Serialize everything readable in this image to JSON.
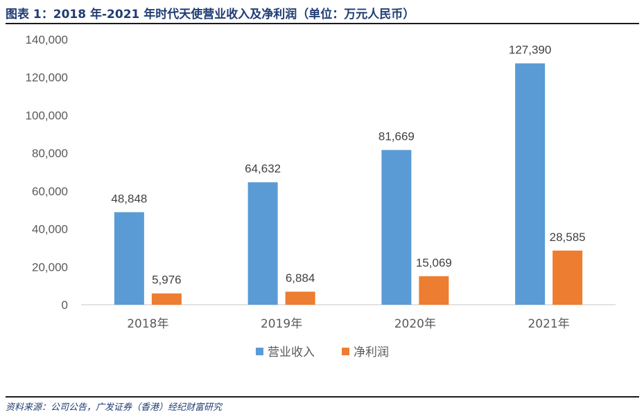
{
  "header": {
    "title": "图表 1：2018 年-2021 年时代天使营业收入及净利润（单位：万元人民币）"
  },
  "footer": {
    "source": "资料来源：公司公告，广发证券（香港）经纪财富研究"
  },
  "chart_data": {
    "type": "bar",
    "categories": [
      "2018年",
      "2019年",
      "2020年",
      "2021年"
    ],
    "series": [
      {
        "name": "营业收入",
        "values": [
          48848,
          64632,
          81669,
          127390
        ],
        "color": "#5b9bd5"
      },
      {
        "name": "净利润",
        "values": [
          5976,
          6884,
          15069,
          28585
        ],
        "color": "#ed7d31"
      }
    ],
    "data_labels": [
      [
        "48,848",
        "64,632",
        "81,669",
        "127,390"
      ],
      [
        "5,976",
        "6,884",
        "15,069",
        "28,585"
      ]
    ],
    "y_ticks": [
      "0",
      "20,000",
      "40,000",
      "60,000",
      "80,000",
      "100,000",
      "120,000",
      "140,000"
    ],
    "ylim": [
      0,
      140000
    ],
    "grid": false,
    "legend_position": "bottom"
  }
}
